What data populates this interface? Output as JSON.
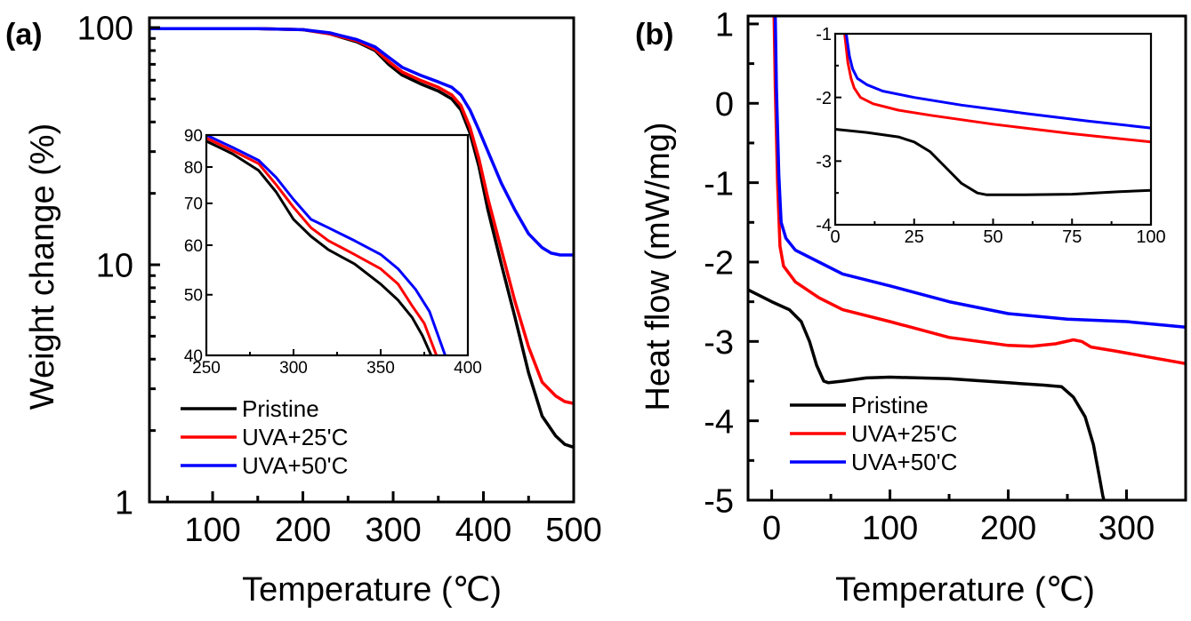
{
  "chart_data": [
    {
      "panel": "(a)",
      "type": "line",
      "xlabel": "Temperature (℃)",
      "ylabel": "Weight change (%)",
      "xlim": [
        30,
        500
      ],
      "ylim": [
        1,
        110
      ],
      "yscale": "log",
      "xticks": [
        100,
        200,
        300,
        400,
        500
      ],
      "yticks": [
        1,
        10,
        100
      ],
      "legend": {
        "position": "bottom-left",
        "entries": [
          "Pristine",
          "UVA+25'C",
          "UVA+50'C"
        ]
      },
      "series": [
        {
          "name": "Pristine",
          "color": "#000000",
          "x": [
            30,
            150,
            200,
            230,
            260,
            280,
            295,
            310,
            330,
            350,
            365,
            375,
            385,
            395,
            405,
            420,
            435,
            450,
            465,
            480,
            490,
            500
          ],
          "y": [
            99,
            99,
            98,
            94,
            87,
            80,
            70,
            63,
            58,
            54,
            50,
            45,
            36,
            26,
            17,
            10,
            6,
            3.5,
            2.3,
            1.9,
            1.75,
            1.7
          ]
        },
        {
          "name": "UVA+25'C",
          "color": "#ff0000",
          "x": [
            30,
            150,
            200,
            230,
            260,
            280,
            295,
            310,
            330,
            350,
            365,
            375,
            385,
            395,
            405,
            420,
            435,
            450,
            465,
            480,
            490,
            500
          ],
          "y": [
            99,
            99,
            98,
            94,
            88,
            81,
            72,
            65,
            60,
            56,
            52,
            47,
            38,
            28,
            19,
            11.5,
            7,
            4.5,
            3.2,
            2.8,
            2.65,
            2.6
          ]
        },
        {
          "name": "UVA+50'C",
          "color": "#0000ff",
          "x": [
            30,
            150,
            200,
            230,
            260,
            280,
            295,
            310,
            330,
            350,
            365,
            375,
            385,
            395,
            405,
            420,
            435,
            450,
            465,
            475,
            485,
            500
          ],
          "y": [
            99,
            99,
            98,
            95,
            89,
            83,
            75,
            68,
            63,
            59,
            56,
            52,
            45,
            37,
            30,
            22,
            17,
            13.5,
            11.8,
            11.2,
            11,
            11
          ]
        }
      ],
      "inset": {
        "xlim": [
          250,
          400
        ],
        "ylim": [
          40,
          90
        ],
        "yscale": "log",
        "xticks": [
          250,
          300,
          350,
          400
        ],
        "yticks": [
          40,
          50,
          60,
          70,
          80,
          90
        ],
        "series": [
          {
            "name": "Pristine",
            "color": "#000000",
            "x": [
              250,
              265,
              280,
              290,
              300,
              310,
              320,
              335,
              350,
              360,
              368,
              374,
              379
            ],
            "y": [
              88,
              84,
              79,
              73,
              66,
              62,
              59,
              56,
              52,
              49,
              46,
              43,
              40
            ]
          },
          {
            "name": "UVA+25'C",
            "color": "#ff0000",
            "x": [
              250,
              265,
              280,
              290,
              300,
              310,
              320,
              335,
              350,
              360,
              368,
              375,
              382
            ],
            "y": [
              89,
              85,
              81,
              75,
              69,
              64,
              61,
              58,
              55,
              52,
              48,
              45,
              40
            ]
          },
          {
            "name": "UVA+50'C",
            "color": "#0000ff",
            "x": [
              250,
              265,
              280,
              290,
              300,
              310,
              320,
              335,
              350,
              360,
              370,
              378,
              387
            ],
            "y": [
              90,
              86,
              82,
              77,
              71,
              66,
              64,
              61,
              58,
              55,
              51,
              47,
              40
            ]
          }
        ]
      }
    },
    {
      "panel": "(b)",
      "type": "line",
      "xlabel": "Temperature (℃)",
      "ylabel": "Heat flow (mW/mg)",
      "xlim": [
        -20,
        350
      ],
      "ylim": [
        -5,
        1.1
      ],
      "yscale": "linear",
      "xticks": [
        0,
        100,
        200,
        300
      ],
      "yticks": [
        -5,
        -4,
        -3,
        -2,
        -1,
        0,
        1
      ],
      "legend": {
        "position": "bottom-left",
        "entries": [
          "Pristine",
          "UVA+25'C",
          "UVA+50'C"
        ]
      },
      "series": [
        {
          "name": "Pristine",
          "color": "#000000",
          "x": [
            -20,
            0,
            15,
            25,
            32,
            38,
            44,
            48,
            60,
            80,
            100,
            150,
            200,
            230,
            245,
            255,
            265,
            272,
            277,
            280,
            281
          ],
          "y": [
            -2.35,
            -2.5,
            -2.6,
            -2.75,
            -3.0,
            -3.3,
            -3.5,
            -3.52,
            -3.5,
            -3.46,
            -3.45,
            -3.47,
            -3.52,
            -3.55,
            -3.57,
            -3.7,
            -3.95,
            -4.3,
            -4.7,
            -4.95,
            -5.0
          ]
        },
        {
          "name": "UVA+25'C",
          "color": "#ff0000",
          "x": [
            2,
            3,
            5,
            7,
            10,
            20,
            40,
            60,
            100,
            150,
            200,
            220,
            240,
            255,
            262,
            270,
            290,
            320,
            350
          ],
          "y": [
            1.1,
            0.2,
            -1.0,
            -1.8,
            -2.05,
            -2.25,
            -2.45,
            -2.6,
            -2.75,
            -2.95,
            -3.05,
            -3.06,
            -3.03,
            -2.98,
            -3.0,
            -3.07,
            -3.12,
            -3.2,
            -3.28
          ]
        },
        {
          "name": "UVA+50'C",
          "color": "#0000ff",
          "x": [
            3,
            4,
            6,
            8,
            12,
            20,
            40,
            60,
            100,
            150,
            200,
            250,
            300,
            350
          ],
          "y": [
            1.1,
            0.2,
            -0.9,
            -1.5,
            -1.7,
            -1.85,
            -2.0,
            -2.15,
            -2.3,
            -2.5,
            -2.65,
            -2.72,
            -2.75,
            -2.82
          ]
        }
      ],
      "inset": {
        "xlim": [
          0,
          100
        ],
        "ylim": [
          -4,
          -1
        ],
        "xticks": [
          0,
          25,
          50,
          75,
          100
        ],
        "yticks": [
          -4,
          -3,
          -2,
          -1
        ],
        "series": [
          {
            "name": "Pristine",
            "color": "#000000",
            "x": [
              0,
              10,
              20,
              25,
              30,
              35,
              40,
              45,
              48,
              60,
              75,
              90,
              100
            ],
            "y": [
              -2.5,
              -2.55,
              -2.62,
              -2.7,
              -2.85,
              -3.1,
              -3.35,
              -3.5,
              -3.53,
              -3.53,
              -3.52,
              -3.48,
              -3.46
            ]
          },
          {
            "name": "UVA+25'C",
            "color": "#ff0000",
            "x": [
              3,
              4,
              5,
              6,
              8,
              12,
              20,
              30,
              50,
              75,
              100
            ],
            "y": [
              -1.0,
              -1.45,
              -1.7,
              -1.85,
              -2.0,
              -2.1,
              -2.2,
              -2.28,
              -2.42,
              -2.57,
              -2.7
            ]
          },
          {
            "name": "UVA+50'C",
            "color": "#0000ff",
            "x": [
              3.5,
              4.5,
              5.5,
              7,
              10,
              15,
              25,
              40,
              60,
              80,
              100
            ],
            "y": [
              -1.0,
              -1.35,
              -1.55,
              -1.7,
              -1.8,
              -1.9,
              -2.0,
              -2.12,
              -2.25,
              -2.37,
              -2.48
            ]
          }
        ]
      }
    }
  ]
}
